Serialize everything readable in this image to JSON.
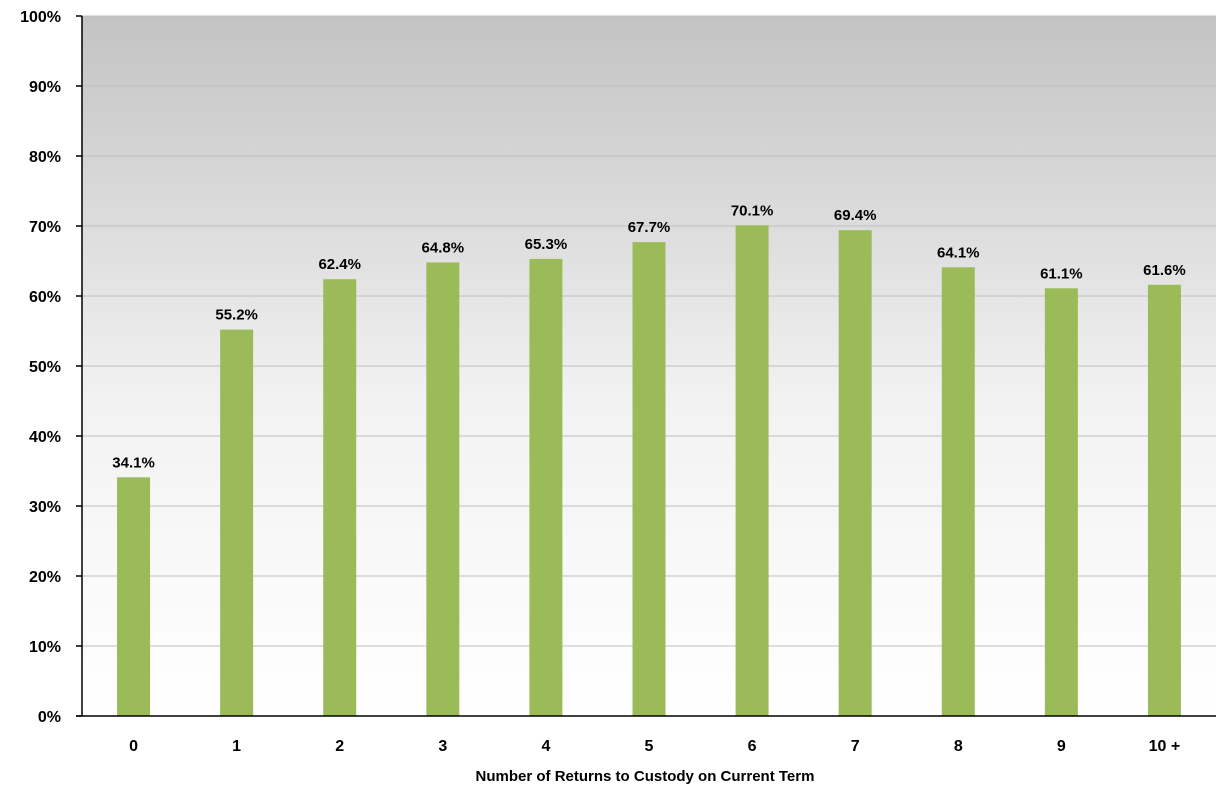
{
  "chart_data": {
    "type": "bar",
    "title": "",
    "xlabel": "Number of Returns to Custody on Current Term",
    "ylabel": "",
    "categories": [
      "0",
      "1",
      "2",
      "3",
      "4",
      "5",
      "6",
      "7",
      "8",
      "9",
      "10 +"
    ],
    "values": [
      34.1,
      55.2,
      62.4,
      64.8,
      65.3,
      67.7,
      70.1,
      69.4,
      64.1,
      61.1,
      61.6
    ],
    "data_labels": [
      "34.1%",
      "55.2%",
      "62.4%",
      "64.8%",
      "65.3%",
      "67.7%",
      "70.1%",
      "69.4%",
      "64.1%",
      "61.1%",
      "61.6%"
    ],
    "ylim": [
      0,
      100
    ],
    "yticks": [
      0,
      10,
      20,
      30,
      40,
      50,
      60,
      70,
      80,
      90,
      100
    ],
    "ytick_labels": [
      "0%",
      "10%",
      "20%",
      "30%",
      "40%",
      "50%",
      "60%",
      "70%",
      "80%",
      "90%",
      "100%"
    ],
    "grid": true,
    "legend": "none",
    "colors": {
      "bar": "#9BBB59",
      "grid": "#bfbfbf",
      "background_top": "#c3c3c3",
      "background_bottom": "#ffffff",
      "axis": "#000000"
    }
  }
}
